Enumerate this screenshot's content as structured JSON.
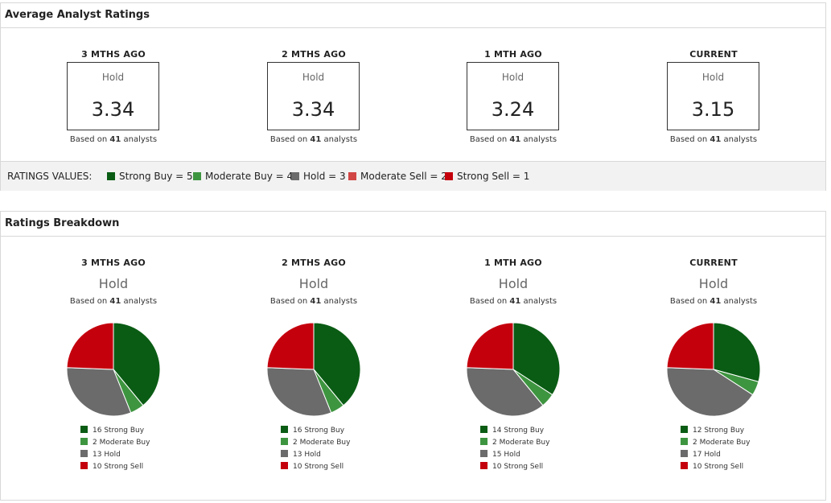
{
  "colors": {
    "strong_buy": "#0a5c14",
    "moderate_buy": "#3e9540",
    "hold": "#6b6b6b",
    "moderate_sell": "#d24545",
    "strong_sell": "#c4000d"
  },
  "average": {
    "title": "Average Analyst Ratings",
    "columns": [
      {
        "period": "3 MTHS AGO",
        "rating": "Hold",
        "value": "3.34",
        "based_prefix": "Based on",
        "count": "41",
        "based_suffix": "analysts"
      },
      {
        "period": "2 MTHS AGO",
        "rating": "Hold",
        "value": "3.34",
        "based_prefix": "Based on",
        "count": "41",
        "based_suffix": "analysts"
      },
      {
        "period": "1 MTH AGO",
        "rating": "Hold",
        "value": "3.24",
        "based_prefix": "Based on",
        "count": "41",
        "based_suffix": "analysts"
      },
      {
        "period": "CURRENT",
        "rating": "Hold",
        "value": "3.15",
        "based_prefix": "Based on",
        "count": "41",
        "based_suffix": "analysts"
      }
    ],
    "ratings_values": {
      "label": "RATINGS VALUES:",
      "items": [
        {
          "text": "Strong Buy = 5",
          "color": "#0a5c14"
        },
        {
          "text": "Moderate Buy = 4",
          "color": "#3e9540"
        },
        {
          "text": "Hold = 3",
          "color": "#6b6b6b"
        },
        {
          "text": "Moderate Sell = 2",
          "color": "#d24545"
        },
        {
          "text": "Strong Sell = 1",
          "color": "#c4000d"
        }
      ]
    }
  },
  "breakdown": {
    "title": "Ratings Breakdown",
    "columns": [
      {
        "period": "3 MTHS AGO",
        "rating": "Hold",
        "based_prefix": "Based on",
        "count": "41",
        "based_suffix": "analysts",
        "legend": [
          "16 Strong Buy",
          "2 Moderate Buy",
          "13 Hold",
          "10 Strong Sell"
        ]
      },
      {
        "period": "2 MTHS AGO",
        "rating": "Hold",
        "based_prefix": "Based on",
        "count": "41",
        "based_suffix": "analysts",
        "legend": [
          "16 Strong Buy",
          "2 Moderate Buy",
          "13 Hold",
          "10 Strong Sell"
        ]
      },
      {
        "period": "1 MTH AGO",
        "rating": "Hold",
        "based_prefix": "Based on",
        "count": "41",
        "based_suffix": "analysts",
        "legend": [
          "14 Strong Buy",
          "2 Moderate Buy",
          "15 Hold",
          "10 Strong Sell"
        ]
      },
      {
        "period": "CURRENT",
        "rating": "Hold",
        "based_prefix": "Based on",
        "count": "41",
        "based_suffix": "analysts",
        "legend": [
          "12 Strong Buy",
          "2 Moderate Buy",
          "17 Hold",
          "10 Strong Sell"
        ]
      }
    ]
  },
  "chart_data": [
    {
      "type": "pie",
      "title": "3 MTHS AGO",
      "categories": [
        "Strong Buy",
        "Moderate Buy",
        "Hold",
        "Strong Sell"
      ],
      "values": [
        16,
        2,
        13,
        10
      ]
    },
    {
      "type": "pie",
      "title": "2 MTHS AGO",
      "categories": [
        "Strong Buy",
        "Moderate Buy",
        "Hold",
        "Strong Sell"
      ],
      "values": [
        16,
        2,
        13,
        10
      ]
    },
    {
      "type": "pie",
      "title": "1 MTH AGO",
      "categories": [
        "Strong Buy",
        "Moderate Buy",
        "Hold",
        "Strong Sell"
      ],
      "values": [
        14,
        2,
        15,
        10
      ]
    },
    {
      "type": "pie",
      "title": "CURRENT",
      "categories": [
        "Strong Buy",
        "Moderate Buy",
        "Hold",
        "Strong Sell"
      ],
      "values": [
        12,
        2,
        17,
        10
      ]
    }
  ]
}
